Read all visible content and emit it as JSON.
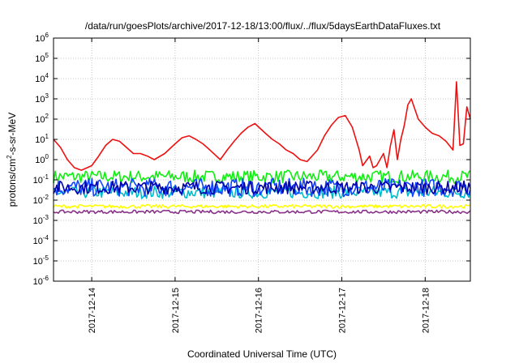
{
  "chart_data": {
    "type": "line",
    "title": "/data/run/goesPlots/archive/2017-12-18/13:00/flux/../flux/5daysEarthDataFluxes.txt",
    "xlabel": "Coordinated Universal Time (UTC)",
    "ylabel_parts": [
      "protons/cm",
      "2",
      "-s-sr-MeV"
    ],
    "y_scale": "log",
    "ylim": [
      1e-06,
      1000000.0
    ],
    "y_ticks": [
      {
        "base": "10",
        "exp": "-6",
        "value": 1e-06
      },
      {
        "base": "10",
        "exp": "-5",
        "value": 1e-05
      },
      {
        "base": "10",
        "exp": "-4",
        "value": 0.0001
      },
      {
        "base": "10",
        "exp": "-3",
        "value": 0.001
      },
      {
        "base": "10",
        "exp": "-2",
        "value": 0.01
      },
      {
        "base": "10",
        "exp": "-1",
        "value": 0.1
      },
      {
        "base": "10",
        "exp": "0",
        "value": 1
      },
      {
        "base": "10",
        "exp": "1",
        "value": 10
      },
      {
        "base": "10",
        "exp": "2",
        "value": 100
      },
      {
        "base": "10",
        "exp": "3",
        "value": 1000
      },
      {
        "base": "10",
        "exp": "4",
        "value": 10000
      },
      {
        "base": "10",
        "exp": "5",
        "value": 100000
      },
      {
        "base": "10",
        "exp": "6",
        "value": 1000000
      }
    ],
    "xlim": [
      "2017-12-13 13:00",
      "2017-12-18 13:00"
    ],
    "x_ticks": [
      "2017-12-14",
      "2017-12-15",
      "2017-12-16",
      "2017-12-17",
      "2017-12-18"
    ],
    "grid": true,
    "series": [
      {
        "color": "#ee1111",
        "x": [
          "2017-12-13 13:00",
          "2017-12-13 15:00",
          "2017-12-13 17:00",
          "2017-12-13 19:00",
          "2017-12-13 21:00",
          "2017-12-14 00:00",
          "2017-12-14 02:00",
          "2017-12-14 04:00",
          "2017-12-14 06:00",
          "2017-12-14 08:00",
          "2017-12-14 10:00",
          "2017-12-14 12:00",
          "2017-12-14 14:00",
          "2017-12-14 16:00",
          "2017-12-14 18:00",
          "2017-12-14 21:00",
          "2017-12-15 00:00",
          "2017-12-15 02:00",
          "2017-12-15 04:00",
          "2017-12-15 06:00",
          "2017-12-15 08:00",
          "2017-12-15 10:00",
          "2017-12-15 13:00",
          "2017-12-15 15:00",
          "2017-12-15 17:00",
          "2017-12-15 19:00",
          "2017-12-15 21:00",
          "2017-12-15 23:00",
          "2017-12-16 02:00",
          "2017-12-16 04:00",
          "2017-12-16 06:00",
          "2017-12-16 08:00",
          "2017-12-16 10:00",
          "2017-12-16 12:00",
          "2017-12-16 14:00",
          "2017-12-16 17:00",
          "2017-12-16 19:00",
          "2017-12-16 21:00",
          "2017-12-16 23:00",
          "2017-12-17 01:00",
          "2017-12-17 03:00",
          "2017-12-17 05:00",
          "2017-12-17 06:00",
          "2017-12-17 08:00",
          "2017-12-17 09:00",
          "2017-12-17 10:00",
          "2017-12-17 11:00",
          "2017-12-17 12:00",
          "2017-12-17 13:00",
          "2017-12-17 14:00",
          "2017-12-17 15:00",
          "2017-12-17 16:00",
          "2017-12-17 17:00",
          "2017-12-17 18:00",
          "2017-12-17 19:00",
          "2017-12-17 20:00",
          "2017-12-17 22:00",
          "2017-12-18 00:00",
          "2017-12-18 02:00",
          "2017-12-18 04:00",
          "2017-12-18 06:00",
          "2017-12-18 08:00",
          "2017-12-18 09:00",
          "2017-12-18 10:00",
          "2017-12-18 11:00",
          "2017-12-18 12:00",
          "2017-12-18 13:00"
        ],
        "values": [
          10,
          4,
          1,
          0.4,
          0.3,
          0.5,
          1.5,
          5,
          10,
          8,
          4,
          2,
          2,
          1.5,
          1,
          2,
          6,
          12,
          15,
          10,
          6,
          3,
          1,
          3,
          8,
          20,
          40,
          60,
          20,
          10,
          6,
          3,
          2,
          1,
          0.8,
          3,
          15,
          50,
          120,
          150,
          40,
          3,
          0.5,
          1.5,
          0.4,
          0.5,
          1,
          2,
          0.4,
          5,
          30,
          1,
          10,
          50,
          500,
          1000,
          100,
          40,
          20,
          15,
          8,
          3,
          7000,
          5,
          6,
          400,
          100
        ]
      },
      {
        "color": "#11ee11",
        "band": [
          0.07,
          0.3
        ]
      },
      {
        "color": "#00bbcc",
        "band": [
          0.012,
          0.05
        ]
      },
      {
        "color": "#1144ff",
        "band": [
          0.015,
          0.12
        ]
      },
      {
        "color": "#0000aa",
        "band": [
          0.02,
          0.09
        ]
      },
      {
        "color": "#ffff00",
        "band": [
          0.004,
          0.006
        ]
      },
      {
        "color": "#883388",
        "band": [
          0.0022,
          0.0032
        ]
      }
    ]
  }
}
